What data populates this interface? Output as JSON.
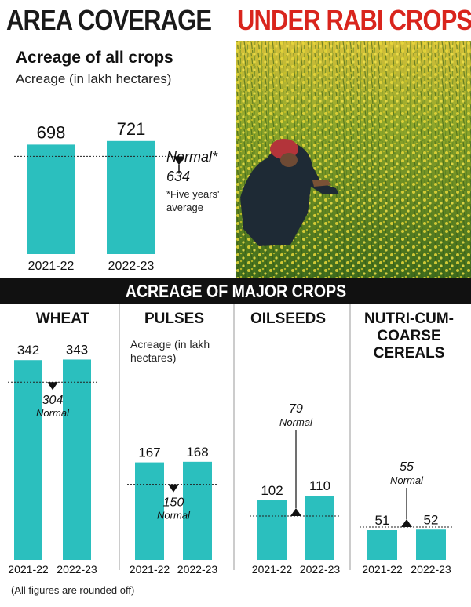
{
  "header": {
    "title_part1": "AREA COVERAGE",
    "title_part2": "UNDER RABI CROPS",
    "title_color2": "#d9251d"
  },
  "colors": {
    "bar": "#2bbfbe",
    "band": "#111111"
  },
  "band": {
    "label": "ACREAGE OF MAJOR CROPS"
  },
  "footnote": "(All figures are rounded off)",
  "chart_data": [
    {
      "type": "bar",
      "title": "Acreage of all crops",
      "subtitle": "Acreage (in lakh hectares)",
      "categories": [
        "2021-22",
        "2022-23"
      ],
      "values": [
        698,
        721
      ],
      "value_labels": [
        "698",
        "721"
      ],
      "reference_line": {
        "value": 634,
        "label": "Normal*",
        "value_label": "634",
        "note": "*Five years' average"
      }
    },
    {
      "type": "bar",
      "title": "WHEAT",
      "categories": [
        "2021-22",
        "2022-23"
      ],
      "values": [
        342,
        343
      ],
      "value_labels": [
        "342",
        "343"
      ],
      "reference_line": {
        "value": 304,
        "value_label": "304",
        "label": "Normal"
      }
    },
    {
      "type": "bar",
      "title": "PULSES",
      "subtitle_lines": [
        "Acreage (in lakh",
        "hectares)"
      ],
      "categories": [
        "2021-22",
        "2022-23"
      ],
      "values": [
        167,
        168
      ],
      "value_labels": [
        "167",
        "168"
      ],
      "reference_line": {
        "value": 150,
        "value_label": "150",
        "label": "Normal"
      }
    },
    {
      "type": "bar",
      "title": "OILSEEDS",
      "categories": [
        "2021-22",
        "2022-23"
      ],
      "values": [
        102,
        110
      ],
      "value_labels": [
        "102",
        "110"
      ],
      "reference_line": {
        "value": 79,
        "value_label": "79",
        "label": "Normal"
      }
    },
    {
      "type": "bar",
      "title_lines": [
        "NUTRI-CUM-",
        "COARSE",
        "CEREALS"
      ],
      "categories": [
        "2021-22",
        "2022-23"
      ],
      "values": [
        51,
        52
      ],
      "value_labels": [
        "51",
        "52"
      ],
      "reference_line": {
        "value": 55,
        "value_label": "55",
        "label": "Normal"
      }
    }
  ]
}
